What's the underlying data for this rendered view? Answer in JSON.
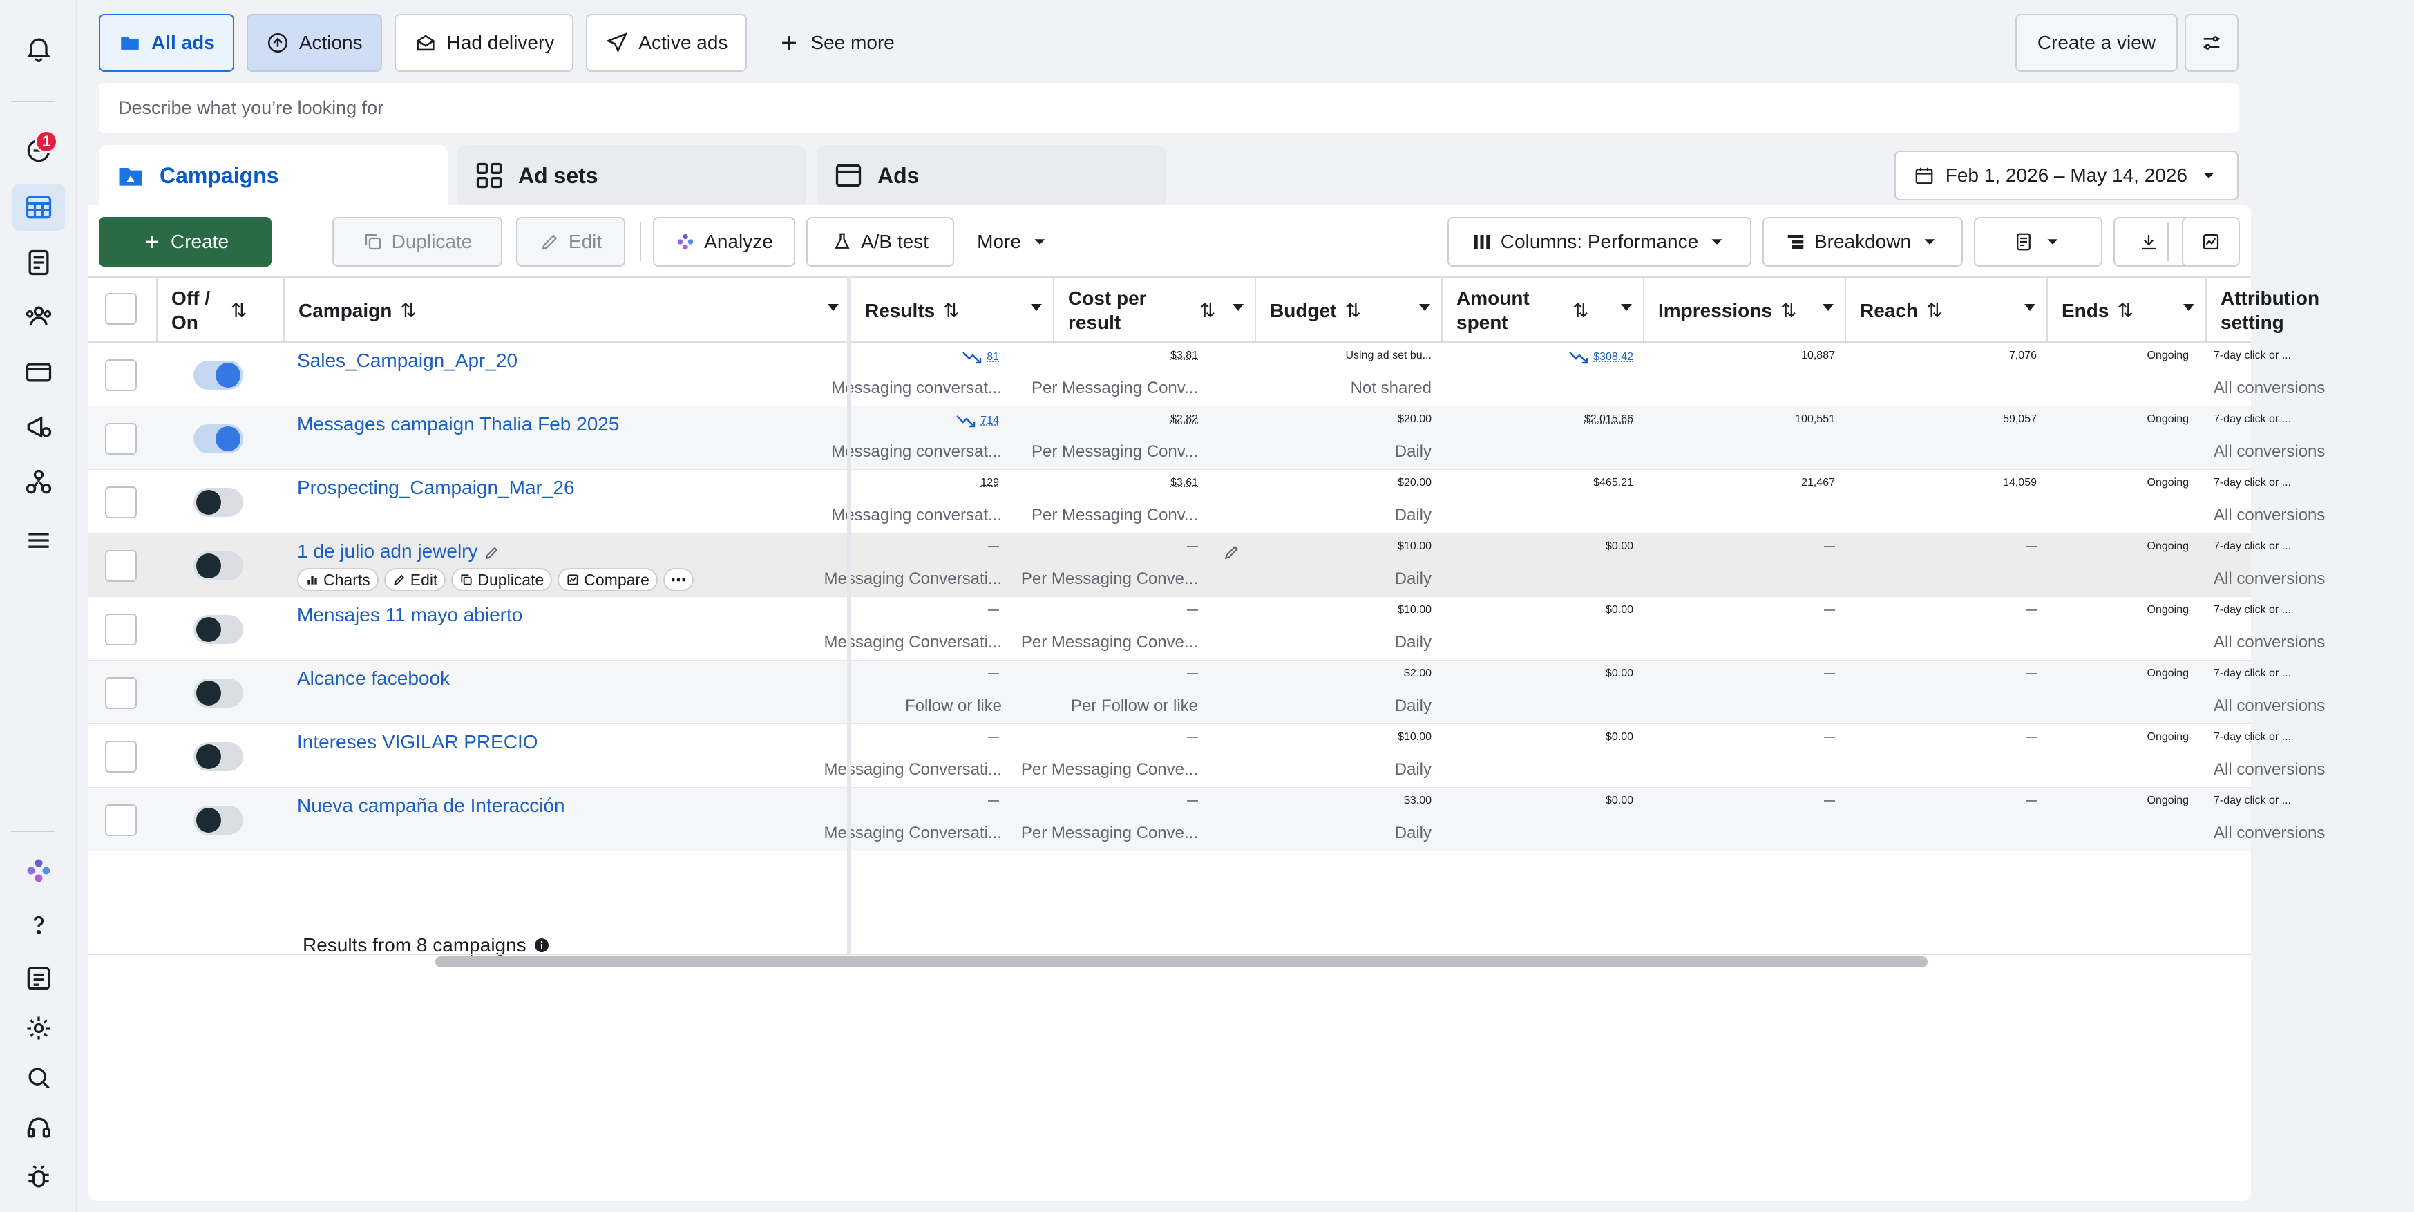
{
  "rail": {
    "badge": "1"
  },
  "filters": {
    "items": [
      "All ads",
      "Actions",
      "Had delivery",
      "Active ads",
      "See more"
    ]
  },
  "top_right": {
    "create_view": "Create a view"
  },
  "search": {
    "placeholder": "Describe what you’re looking for"
  },
  "tabs": {
    "campaigns": "Campaigns",
    "adsets": "Ad sets",
    "ads": "Ads"
  },
  "date_range": "Feb 1, 2026 – May 14, 2026",
  "toolbar": {
    "create": "Create",
    "duplicate": "Duplicate",
    "edit": "Edit",
    "analyze": "Analyze",
    "abtest": "A/B test",
    "more": "More",
    "columns": "Columns: Performance",
    "breakdown": "Breakdown"
  },
  "columns": {
    "offon": "Off / On",
    "campaign": "Campaign",
    "results": "Results",
    "cost": "Cost per result",
    "budget": "Budget",
    "amount": "Amount spent",
    "impressions": "Impressions",
    "reach": "Reach",
    "ends": "Ends",
    "attribution": "Attribution setting"
  },
  "row_actions": {
    "charts": "Charts",
    "edit": "Edit",
    "duplicate": "Duplicate",
    "compare": "Compare"
  },
  "rows": [
    {
      "name": "Sales_Campaign_Apr_20",
      "on": true,
      "results": "81",
      "results_sub": "Messaging conversat...",
      "cost": "$3.81",
      "cost_sub": "Per Messaging Conv...",
      "budget": "Using ad set bu...",
      "budget_sub": "Not shared",
      "amount": "$308.42",
      "impressions": "10,887",
      "reach": "7,076",
      "ends": "Ongoing",
      "attr": "7-day click or ...",
      "attr_sub": "All conversions"
    },
    {
      "name": "Messages campaign Thalia Feb 2025",
      "on": true,
      "results": "714",
      "results_sub": "Messaging conversat...",
      "cost": "$2.82",
      "cost_sub": "Per Messaging Conv...",
      "budget": "$20.00",
      "budget_sub": "Daily",
      "amount": "$2,015.66",
      "impressions": "100,551",
      "reach": "59,057",
      "ends": "Ongoing",
      "attr": "7-day click or ...",
      "attr_sub": "All conversions"
    },
    {
      "name": "Prospecting_Campaign_Mar_26",
      "on": false,
      "results": "129",
      "results_sub": "Messaging conversat...",
      "cost": "$3.61",
      "cost_sub": "Per Messaging Conv...",
      "budget": "$20.00",
      "budget_sub": "Daily",
      "amount": "$465.21",
      "impressions": "21,467",
      "reach": "14,059",
      "ends": "Ongoing",
      "attr": "7-day click or ...",
      "attr_sub": "All conversions"
    },
    {
      "name": "1 de julio adn jewelry",
      "on": false,
      "results": "—",
      "results_sub": "Messaging Conversati...",
      "cost": "—",
      "cost_sub": "Per Messaging Conve...",
      "budget": "$10.00",
      "budget_sub": "Daily",
      "amount": "$0.00",
      "impressions": "—",
      "reach": "—",
      "ends": "Ongoing",
      "attr": "7-day click or ...",
      "attr_sub": "All conversions"
    },
    {
      "name": "Mensajes 11 mayo abierto",
      "on": false,
      "results": "—",
      "results_sub": "Messaging Conversati...",
      "cost": "—",
      "cost_sub": "Per Messaging Conve...",
      "budget": "$10.00",
      "budget_sub": "Daily",
      "amount": "$0.00",
      "impressions": "—",
      "reach": "—",
      "ends": "Ongoing",
      "attr": "7-day click or ...",
      "attr_sub": "All conversions"
    },
    {
      "name": "Alcance facebook",
      "on": false,
      "results": "—",
      "results_sub": "Follow or like",
      "cost": "—",
      "cost_sub": "Per Follow or like",
      "budget": "$2.00",
      "budget_sub": "Daily",
      "amount": "$0.00",
      "impressions": "—",
      "reach": "—",
      "ends": "Ongoing",
      "attr": "7-day click or ...",
      "attr_sub": "All conversions"
    },
    {
      "name": "Intereses VIGILAR PRECIO",
      "on": false,
      "results": "—",
      "results_sub": "Messaging Conversati...",
      "cost": "—",
      "cost_sub": "Per Messaging Conve...",
      "budget": "$10.00",
      "budget_sub": "Daily",
      "amount": "$0.00",
      "impressions": "—",
      "reach": "—",
      "ends": "Ongoing",
      "attr": "7-day click or ...",
      "attr_sub": "All conversions"
    },
    {
      "name": "Nueva campaña de Interacción",
      "on": false,
      "results": "—",
      "results_sub": "Messaging Conversati...",
      "cost": "—",
      "cost_sub": "Per Messaging Conve...",
      "budget": "$3.00",
      "budget_sub": "Daily",
      "amount": "$0.00",
      "impressions": "—",
      "reach": "—",
      "ends": "Ongoing",
      "attr": "7-day click or ...",
      "attr_sub": "All conversions"
    }
  ],
  "footer": "Results from 8 campaigns",
  "colors": {
    "link": "#1b5fc1",
    "primary": "#2a6b45",
    "toggle_on": "#3578e5"
  }
}
